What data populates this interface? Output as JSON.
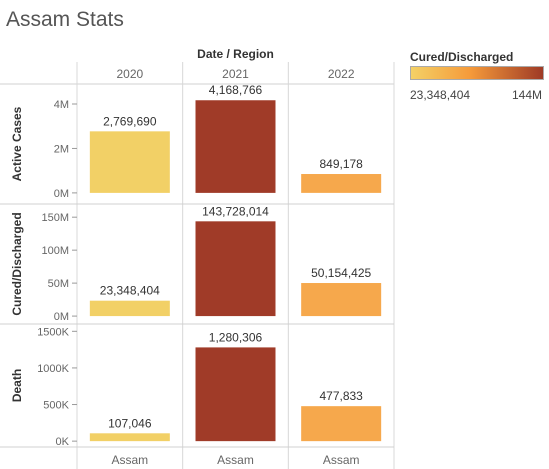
{
  "title": "Assam Stats",
  "legend": {
    "title": "Cured/Discharged",
    "min_label": "23,348,404",
    "max_label": "144M",
    "color_low": "#f4d166",
    "color_mid": "#f59a3a",
    "color_high": "#9e3a26"
  },
  "chart_data": {
    "type": "bar",
    "column_header": "Date / Region",
    "categories": [
      "2020",
      "2021",
      "2022"
    ],
    "region": "Assam",
    "bar_colors": [
      "#f2d066",
      "#a03b28",
      "#f6a84c"
    ],
    "panels": [
      {
        "name": "Active Cases",
        "values": [
          2769690,
          4168766,
          849178
        ],
        "labels": [
          "2,769,690",
          "4,168,766",
          "849,178"
        ],
        "ylim": [
          -500000,
          4900000
        ],
        "ticks": [
          0,
          2000000,
          4000000
        ],
        "tick_labels": [
          "0M",
          "2M",
          "4M"
        ]
      },
      {
        "name": "Cured/Discharged",
        "values": [
          23348404,
          143728014,
          50154425
        ],
        "labels": [
          "23,348,404",
          "143,728,014",
          "50,154,425"
        ],
        "ylim": [
          -12000000,
          170000000
        ],
        "ticks": [
          0,
          50000000,
          100000000,
          150000000
        ],
        "tick_labels": [
          "0M",
          "50M",
          "100M",
          "150M"
        ]
      },
      {
        "name": "Death",
        "values": [
          107046,
          1280306,
          477833
        ],
        "labels": [
          "107,046",
          "1,280,306",
          "477,833"
        ],
        "ylim": [
          -80000,
          1600000
        ],
        "ticks": [
          0,
          500000,
          1000000,
          1500000
        ],
        "tick_labels": [
          "0K",
          "500K",
          "1000K",
          "1500K"
        ]
      }
    ]
  }
}
